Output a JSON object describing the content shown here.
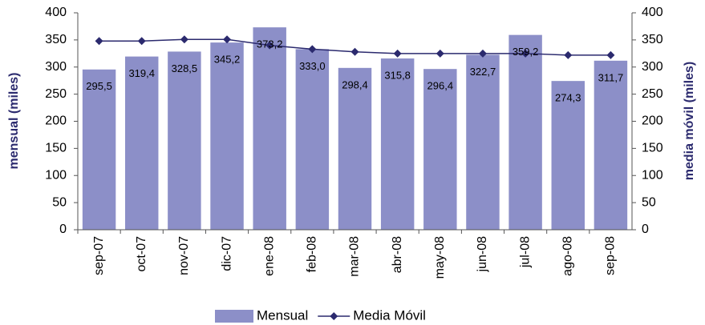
{
  "chart_data": {
    "type": "bar",
    "categories": [
      "sep-07",
      "oct-07",
      "nov-07",
      "dic-07",
      "ene-08",
      "feb-08",
      "mar-08",
      "abr-08",
      "may-08",
      "jun-08",
      "jul-08",
      "ago-08",
      "sep-08"
    ],
    "y_label": "mensual (miles)",
    "y2_label": "media móvil (miles)",
    "series": [
      {
        "name": "Mensual",
        "type": "bar",
        "color": "#8c8fc8",
        "values": [
          295.5,
          319.4,
          328.5,
          345.2,
          373.2,
          333.0,
          298.4,
          315.8,
          296.4,
          322.7,
          359.2,
          274.3,
          311.7
        ],
        "value_labels": [
          "295,5",
          "319,4",
          "328,5",
          "345,2",
          "373,2",
          "333,0",
          "298,4",
          "315,8",
          "296,4",
          "322,7",
          "359,2",
          "274,3",
          "311,7"
        ]
      },
      {
        "name": "Media Móvil",
        "type": "line",
        "axis": "y2",
        "color": "#2b2a6e",
        "values": [
          348,
          348,
          351,
          351,
          340,
          333,
          328,
          325,
          325,
          325,
          325,
          322,
          322
        ]
      }
    ],
    "ylim": [
      0,
      400
    ],
    "yticks": [
      0,
      50,
      100,
      150,
      200,
      250,
      300,
      350,
      400
    ],
    "y2lim": [
      0,
      400
    ],
    "y2ticks": [
      0,
      50,
      100,
      150,
      200,
      250,
      300,
      350,
      400
    ],
    "legend": "bottom"
  }
}
